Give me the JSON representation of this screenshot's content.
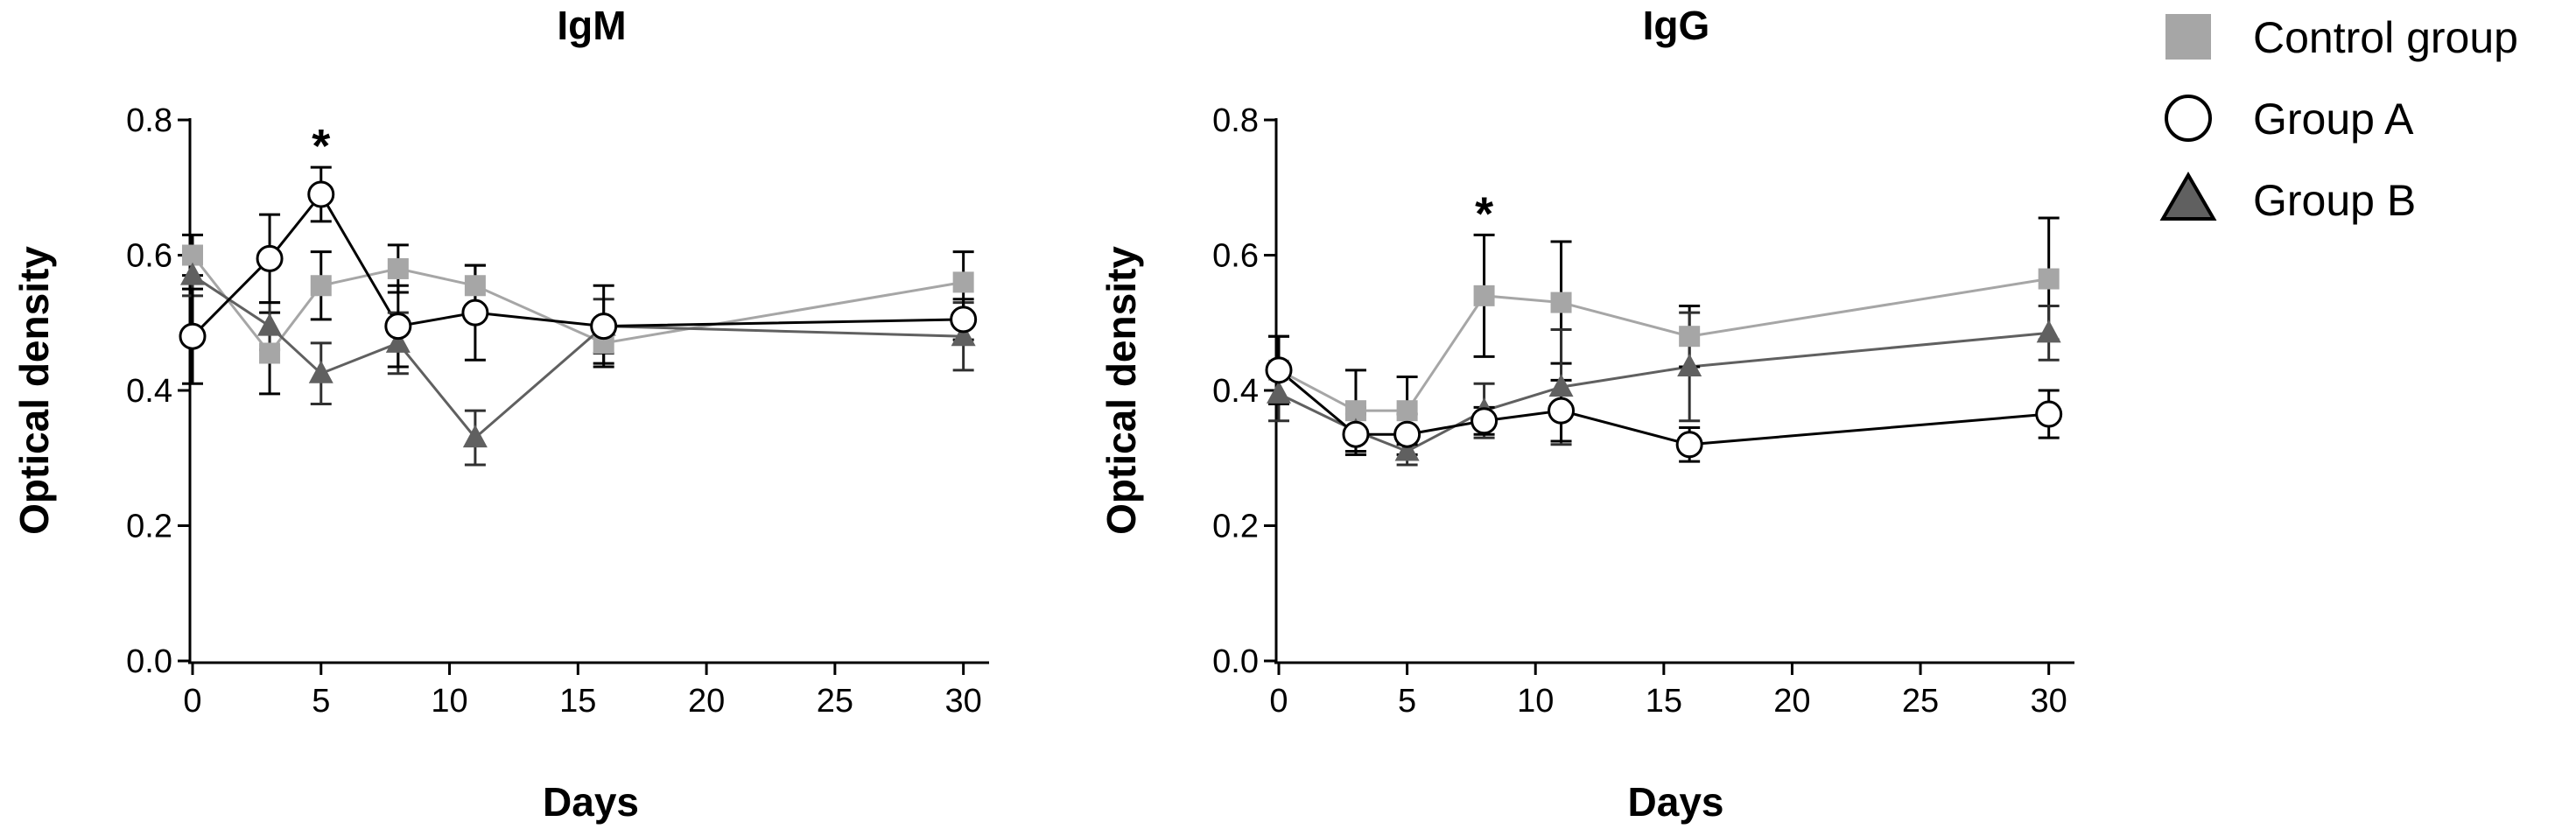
{
  "chart_data": [
    {
      "type": "line",
      "title": "IgM",
      "xlabel": "Days",
      "ylabel": "Optical density",
      "xlim": [
        0,
        31
      ],
      "ylim": [
        0,
        0.8
      ],
      "xticks": [
        0,
        5,
        10,
        15,
        20,
        25,
        30
      ],
      "yticks": [
        0.0,
        0.2,
        0.4,
        0.6,
        0.8
      ],
      "xtick_labels": [
        "0",
        "5",
        "10",
        "15",
        "20",
        "25",
        "30"
      ],
      "ytick_labels": [
        "0.0",
        "0.2",
        "0.4",
        "0.6",
        "0.8"
      ],
      "series": [
        {
          "name": "Control group",
          "color": "#a6a6a6",
          "marker": "square",
          "x": [
            0,
            3,
            5,
            8,
            11,
            16,
            30
          ],
          "y": [
            0.6,
            0.455,
            0.555,
            0.58,
            0.555,
            0.47,
            0.56
          ],
          "err": [
            0.03,
            0.06,
            0.05,
            0.035,
            0.03,
            0.03,
            0.045
          ]
        },
        {
          "name": "Group A",
          "color": "#000000",
          "marker": "circle",
          "x": [
            0,
            3,
            5,
            8,
            11,
            16,
            30
          ],
          "y": [
            0.48,
            0.595,
            0.69,
            0.495,
            0.515,
            0.495,
            0.505
          ],
          "err": [
            0.07,
            0.065,
            0.04,
            0.06,
            0.07,
            0.06,
            0.03
          ]
        },
        {
          "name": "Group B",
          "color": "#606060",
          "marker": "triangle",
          "x": [
            0,
            3,
            5,
            8,
            11,
            16,
            30
          ],
          "y": [
            0.57,
            0.495,
            0.425,
            0.47,
            0.33,
            0.495,
            0.48
          ],
          "err": [
            0.03,
            0.035,
            0.045,
            0.045,
            0.04,
            0.04,
            0.05
          ]
        }
      ],
      "annotations": [
        {
          "text": "*",
          "x": 5,
          "y": 0.77
        }
      ]
    },
    {
      "type": "line",
      "title": "IgG",
      "xlabel": "Days",
      "ylabel": "Optical density",
      "xlim": [
        0,
        31
      ],
      "ylim": [
        0,
        0.8
      ],
      "xticks": [
        0,
        5,
        10,
        15,
        20,
        25,
        30
      ],
      "yticks": [
        0.0,
        0.2,
        0.4,
        0.6,
        0.8
      ],
      "xtick_labels": [
        "0",
        "5",
        "10",
        "15",
        "20",
        "25",
        "30"
      ],
      "ytick_labels": [
        "0.0",
        "0.2",
        "0.4",
        "0.6",
        "0.8"
      ],
      "series": [
        {
          "name": "Control group",
          "color": "#a6a6a6",
          "marker": "square",
          "x": [
            0,
            3,
            5,
            8,
            11,
            16,
            30
          ],
          "y": [
            0.43,
            0.37,
            0.37,
            0.54,
            0.53,
            0.48,
            0.565
          ],
          "err": [
            0.05,
            0.06,
            0.05,
            0.09,
            0.09,
            0.045,
            0.09
          ]
        },
        {
          "name": "Group A",
          "color": "#000000",
          "marker": "circle",
          "x": [
            0,
            3,
            5,
            8,
            11,
            16,
            30
          ],
          "y": [
            0.43,
            0.335,
            0.335,
            0.355,
            0.37,
            0.32,
            0.365
          ],
          "err": [
            0.05,
            0.03,
            0.03,
            0.02,
            0.045,
            0.025,
            0.035
          ]
        },
        {
          "name": "Group B",
          "color": "#606060",
          "marker": "triangle",
          "x": [
            0,
            3,
            5,
            8,
            11,
            16,
            30
          ],
          "y": [
            0.395,
            0.34,
            0.31,
            0.37,
            0.405,
            0.435,
            0.485
          ],
          "err": [
            0.04,
            0.035,
            0.02,
            0.04,
            0.085,
            0.08,
            0.04
          ]
        }
      ],
      "annotations": [
        {
          "text": "*",
          "x": 8,
          "y": 0.67
        }
      ]
    }
  ],
  "legend": {
    "position": "top-right",
    "entries": [
      {
        "label": "Control group",
        "marker": "square",
        "color": "#a6a6a6"
      },
      {
        "label": "Group A",
        "marker": "circle",
        "color": "#000000"
      },
      {
        "label": "Group B",
        "marker": "triangle",
        "color": "#606060"
      }
    ]
  }
}
